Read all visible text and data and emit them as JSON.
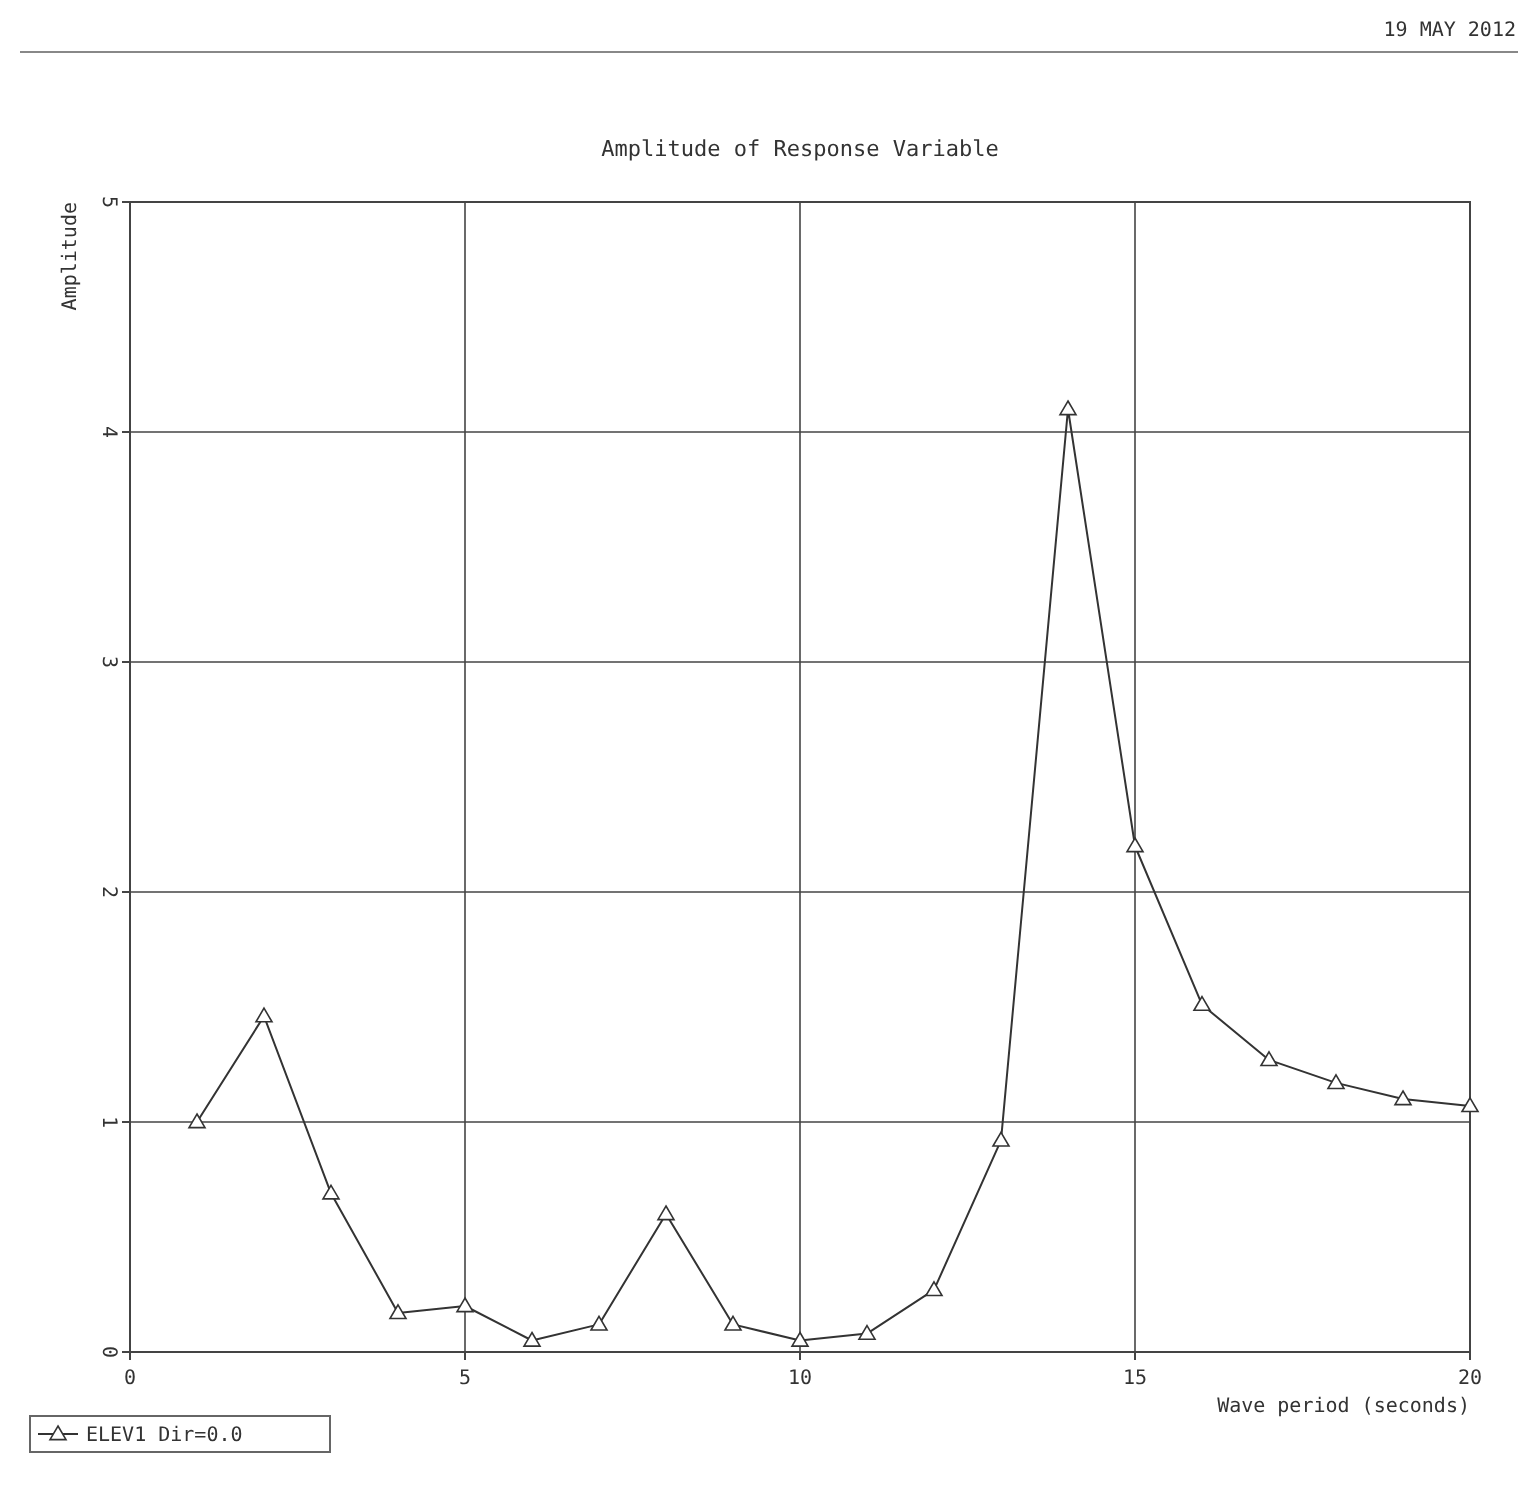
{
  "chart_data": {
    "type": "line",
    "title": "Amplitude of Response Variable",
    "xlabel": "Wave period (seconds)",
    "ylabel": "Amplitude",
    "annotations": [
      "19 MAY 2012"
    ],
    "xlim": [
      0,
      20
    ],
    "xticks": [
      0,
      5,
      10,
      15,
      20
    ],
    "ylim": [
      0,
      5
    ],
    "yticks": [
      0,
      1,
      2,
      3,
      4,
      5
    ],
    "grid": true,
    "legend": "bottom left",
    "marker": "triangle",
    "line_style": "solid",
    "series": [
      {
        "name": "ELEV1 Dir=0.0",
        "color": "#333333",
        "x": [
          1,
          2,
          3,
          4,
          5,
          6,
          7,
          8,
          9,
          10,
          11,
          12,
          13,
          14,
          15,
          16,
          17,
          18,
          19,
          20
        ],
        "values": [
          1.0,
          1.46,
          0.69,
          0.17,
          0.2,
          0.05,
          0.12,
          0.6,
          0.12,
          0.05,
          0.08,
          0.27,
          0.92,
          4.1,
          2.2,
          1.51,
          1.27,
          1.17,
          1.1,
          1.07
        ]
      }
    ]
  }
}
